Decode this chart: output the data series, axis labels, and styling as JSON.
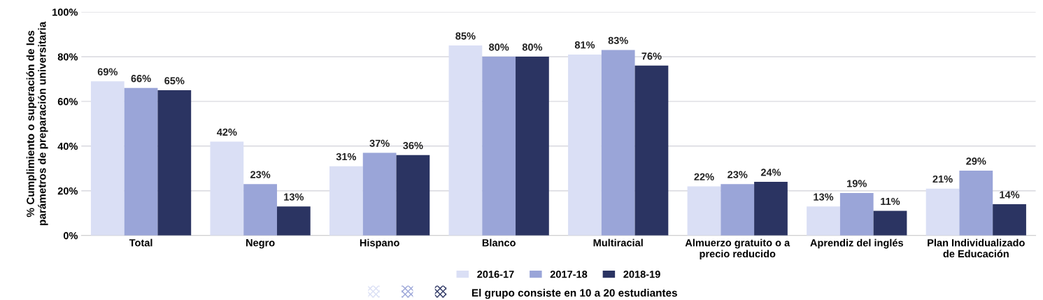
{
  "chart_data": {
    "type": "bar",
    "ylabel": "% Cumplimiento o superación de los\nparámetros de preparación universitaria",
    "categories": [
      "Total",
      "Negro",
      "Hispano",
      "Blanco",
      "Multiracial",
      "Almuerzo gratuito o a\nprecio reducido",
      "Aprendiz del inglés",
      "Plan Individualizado\nde Educación"
    ],
    "series": [
      {
        "name": "2016-17",
        "color": "#dadff5",
        "values": [
          69,
          42,
          31,
          85,
          81,
          22,
          13,
          21
        ],
        "value_labels": [
          "69%",
          "42%",
          "31%",
          "85%",
          "81%",
          "22%",
          "13%",
          "21%"
        ]
      },
      {
        "name": "2017-18",
        "color": "#9aa5d8",
        "values": [
          66,
          23,
          37,
          80,
          83,
          23,
          19,
          29
        ],
        "value_labels": [
          "66%",
          "23%",
          "37%",
          "80%",
          "83%",
          "23%",
          "19%",
          "29%"
        ]
      },
      {
        "name": "2018-19",
        "color": "#2b3462",
        "values": [
          65,
          13,
          36,
          80,
          76,
          24,
          11,
          14
        ],
        "value_labels": [
          "65%",
          "13%",
          "36%",
          "80%",
          "76%",
          "24%",
          "11%",
          "14%"
        ]
      }
    ],
    "ylim": [
      0,
      100
    ],
    "yticks": [
      {
        "value": 0,
        "label": "0%"
      },
      {
        "value": 20,
        "label": "20%"
      },
      {
        "value": 40,
        "label": "40%"
      },
      {
        "value": 60,
        "label": "60%"
      },
      {
        "value": 80,
        "label": "80%"
      },
      {
        "value": 100,
        "label": "100%"
      }
    ],
    "grid": "y",
    "legend": "bottom",
    "annotations": [
      "El grupo consiste en 10 a 20 estudiantes"
    ]
  }
}
